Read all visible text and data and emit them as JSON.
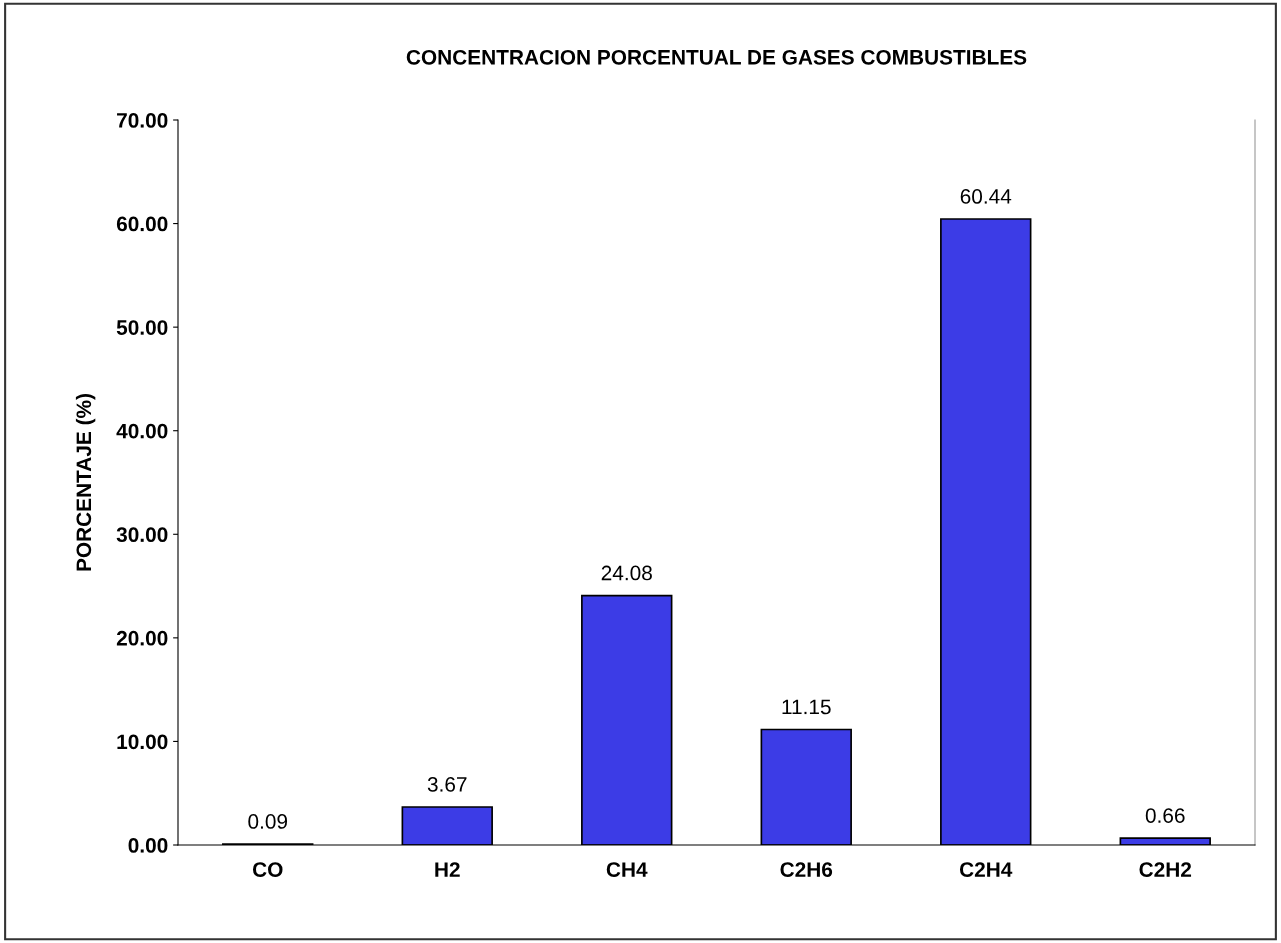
{
  "chart_data": {
    "type": "bar",
    "title": "CONCENTRACION PORCENTUAL DE GASES COMBUSTIBLES",
    "ylabel": "PORCENTAJE (%)",
    "categories": [
      "CO",
      "H2",
      "CH4",
      "C2H6",
      "C2H4",
      "C2H2"
    ],
    "values": [
      0.09,
      3.67,
      24.08,
      11.15,
      60.44,
      0.66
    ],
    "color": "#3c3ce6",
    "data_labels": true,
    "grid": false,
    "ylim": [
      0,
      70
    ],
    "yticks": [
      {
        "value": 0,
        "label": "0.00"
      },
      {
        "value": 10,
        "label": "10.00"
      },
      {
        "value": 20,
        "label": "20.00"
      },
      {
        "value": 30,
        "label": "30.00"
      },
      {
        "value": 40,
        "label": "40.00"
      },
      {
        "value": 50,
        "label": "50.00"
      },
      {
        "value": 60,
        "label": "60.00"
      },
      {
        "value": 70,
        "label": "70.00"
      }
    ]
  }
}
